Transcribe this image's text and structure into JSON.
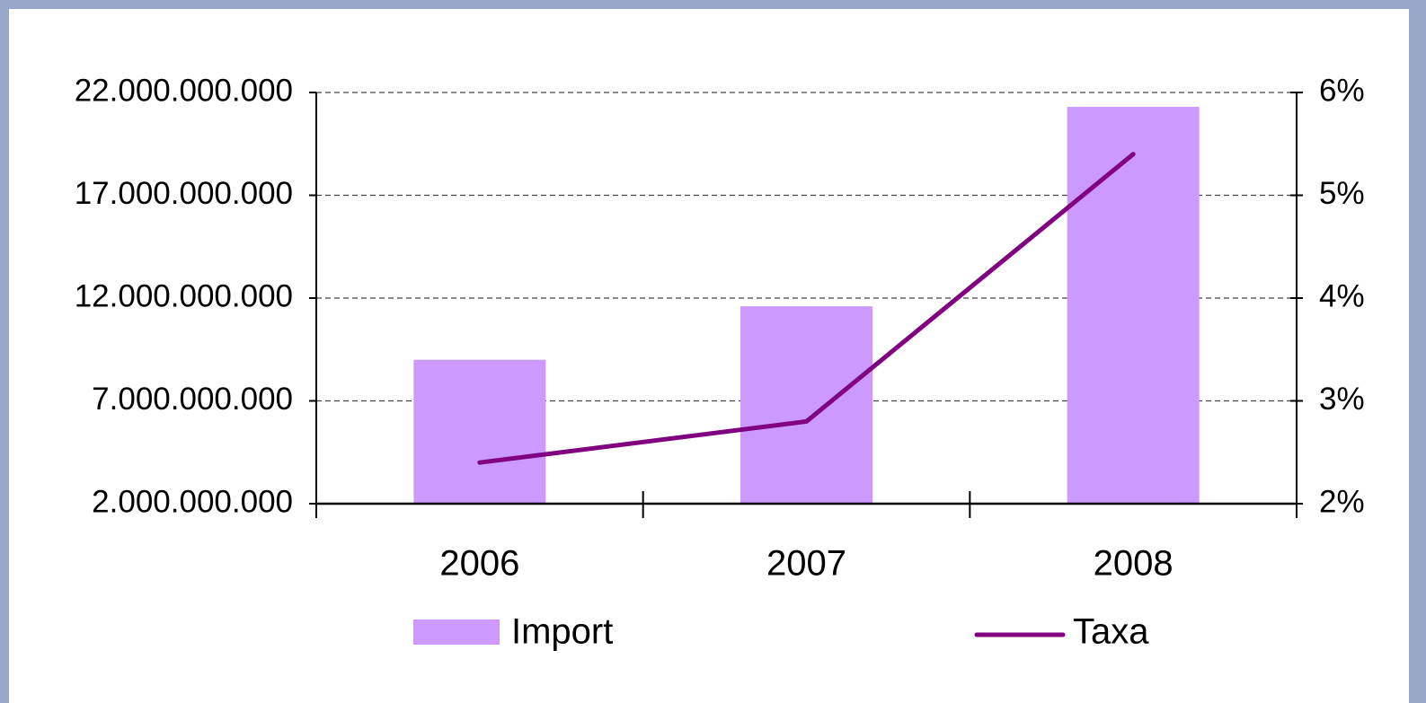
{
  "chart_data": {
    "type": "bar-line",
    "categories": [
      "2006",
      "2007",
      "2008"
    ],
    "series": [
      {
        "name": "Import",
        "type": "bar",
        "color": "#cc99ff",
        "values": [
          9000000000,
          11600000000,
          21300000000
        ]
      },
      {
        "name": "Taxa",
        "type": "line",
        "axis": "y2",
        "color": "#800080",
        "values": [
          2.4,
          2.8,
          5.4
        ]
      }
    ],
    "ylim": [
      2000000000,
      22000000000
    ],
    "yticks": [
      {
        "value": 2000000000,
        "label": "2.000.000.000"
      },
      {
        "value": 7000000000,
        "label": "7.000.000.000"
      },
      {
        "value": 12000000000,
        "label": "12.000.000.000"
      },
      {
        "value": 17000000000,
        "label": "17.000.000.000"
      },
      {
        "value": 22000000000,
        "label": "22.000.000.000"
      }
    ],
    "y2lim": [
      2,
      6
    ],
    "y2ticks": [
      {
        "value": 2,
        "label": "2%"
      },
      {
        "value": 3,
        "label": "3%"
      },
      {
        "value": 4,
        "label": "4%"
      },
      {
        "value": 5,
        "label": "5%"
      },
      {
        "value": 6,
        "label": "6%"
      }
    ],
    "grid": true
  }
}
